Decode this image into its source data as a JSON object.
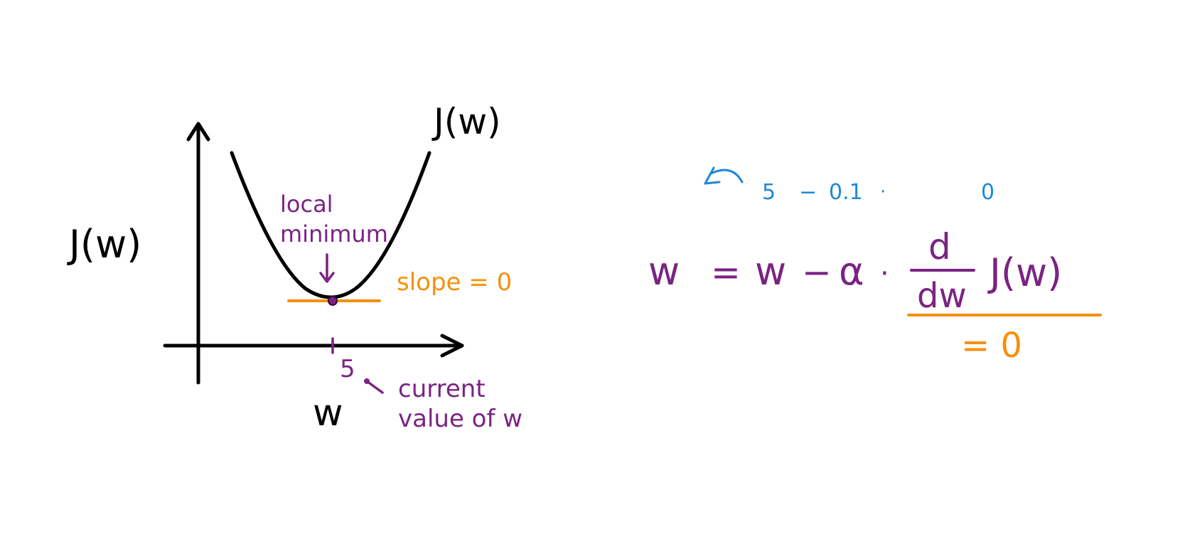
{
  "colors": {
    "ink": "#000000",
    "purple": "#7b2383",
    "orange": "#f5900a",
    "blue": "#1e88d8"
  },
  "graph": {
    "curve_label": "J(w)",
    "y_axis_label": "J(w)",
    "x_axis_label": "w",
    "tick_label": "5",
    "minimum_label_line1": "local",
    "minimum_label_line2": "minimum",
    "slope_label": "slope = 0",
    "current_label_line1": "current",
    "current_label_line2": "value of w"
  },
  "equation": {
    "lhs": "w",
    "equals": "=",
    "w": "w",
    "minus": "−",
    "alpha": "α",
    "dot": "·",
    "d_numerator": "d",
    "d_denominator": "dw",
    "function": "J(w)",
    "derivative_result": "= 0"
  },
  "substitution": {
    "five": "5",
    "minus": "−",
    "lr": "0.1",
    "dot": "·",
    "zero": "0"
  }
}
